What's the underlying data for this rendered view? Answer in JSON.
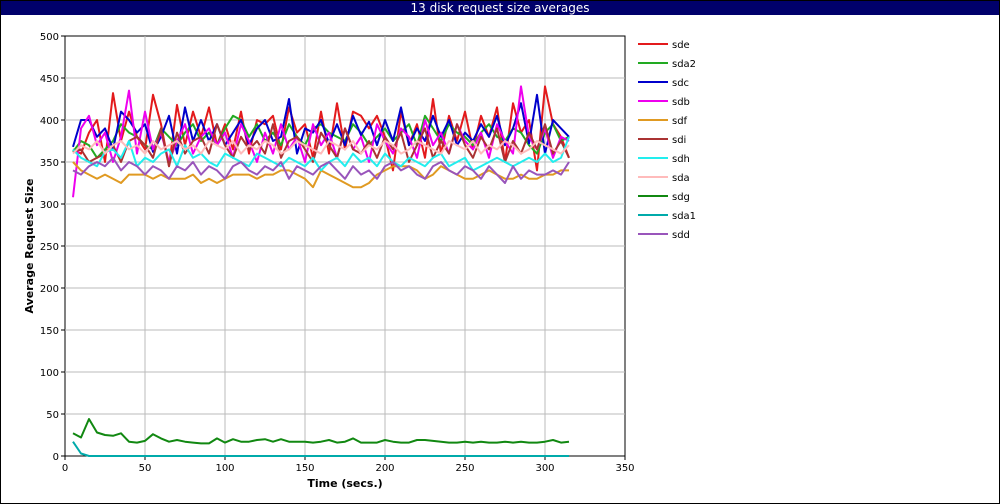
{
  "chart_data": {
    "type": "line",
    "title": "13 disk request size averages",
    "xlabel": "Time (secs.)",
    "ylabel": "Average Request Size",
    "xlim": [
      0,
      350
    ],
    "ylim": [
      0,
      500
    ],
    "xticks": [
      0,
      50,
      100,
      150,
      200,
      250,
      300,
      350
    ],
    "yticks": [
      0,
      50,
      100,
      150,
      200,
      250,
      300,
      350,
      400,
      450,
      500
    ],
    "grid": true,
    "legend_position": "right",
    "x": [
      5,
      10,
      15,
      20,
      25,
      30,
      35,
      40,
      45,
      50,
      55,
      60,
      65,
      70,
      75,
      80,
      85,
      90,
      95,
      100,
      105,
      110,
      115,
      120,
      125,
      130,
      135,
      140,
      145,
      150,
      155,
      160,
      165,
      170,
      175,
      180,
      185,
      190,
      195,
      200,
      205,
      210,
      215,
      220,
      225,
      230,
      235,
      240,
      245,
      250,
      255,
      260,
      265,
      270,
      275,
      280,
      285,
      290,
      295,
      300,
      305,
      310,
      315
    ],
    "series": [
      {
        "name": "sde",
        "color": "#e31a1c",
        "values": [
          365,
          360,
          385,
          400,
          350,
          432,
          375,
          410,
          380,
          365,
          430,
          395,
          345,
          418,
          370,
          410,
          380,
          415,
          370,
          395,
          365,
          410,
          360,
          400,
          395,
          405,
          365,
          415,
          385,
          395,
          355,
          410,
          360,
          420,
          365,
          410,
          405,
          390,
          405,
          380,
          340,
          410,
          370,
          395,
          355,
          425,
          360,
          405,
          375,
          410,
          365,
          405,
          380,
          415,
          350,
          420,
          385,
          400,
          340,
          440,
          395,
          380,
          355
        ]
      },
      {
        "name": "sda2",
        "color": "#22aa22",
        "values": [
          362,
          375,
          370,
          355,
          365,
          375,
          395,
          385,
          380,
          370,
          365,
          390,
          380,
          370,
          385,
          395,
          375,
          385,
          370,
          390,
          405,
          400,
          380,
          395,
          375,
          385,
          370,
          395,
          380,
          370,
          390,
          395,
          385,
          380,
          375,
          395,
          385,
          370,
          380,
          390,
          375,
          385,
          395,
          370,
          405,
          390,
          375,
          395,
          385,
          380,
          370,
          385,
          395,
          380,
          375,
          390,
          385,
          370,
          360,
          385,
          395,
          375,
          380
        ]
      },
      {
        "name": "sdc",
        "color": "#0000cc",
        "values": [
          368,
          400,
          400,
          380,
          390,
          365,
          410,
          400,
          385,
          395,
          362,
          380,
          405,
          360,
          415,
          375,
          400,
          375,
          395,
          370,
          385,
          400,
          370,
          390,
          400,
          375,
          380,
          425,
          360,
          390,
          385,
          400,
          372,
          395,
          370,
          405,
          382,
          398,
          370,
          400,
          375,
          415,
          370,
          390,
          375,
          405,
          380,
          400,
          370,
          385,
          375,
          395,
          380,
          405,
          370,
          390,
          420,
          372,
          430,
          360,
          400,
          390,
          380
        ]
      },
      {
        "name": "sdb",
        "color": "#ee00ee",
        "values": [
          308,
          390,
          405,
          370,
          385,
          350,
          380,
          435,
          360,
          410,
          365,
          385,
          350,
          375,
          395,
          360,
          380,
          390,
          370,
          385,
          355,
          395,
          375,
          350,
          385,
          360,
          395,
          365,
          380,
          350,
          395,
          370,
          385,
          355,
          390,
          365,
          380,
          350,
          395,
          375,
          360,
          390,
          380,
          355,
          400,
          370,
          385,
          360,
          395,
          375,
          365,
          385,
          355,
          395,
          375,
          360,
          440,
          380,
          365,
          390,
          355,
          380,
          375
        ]
      },
      {
        "name": "sdf",
        "color": "#e09a22",
        "values": [
          350,
          340,
          335,
          330,
          335,
          330,
          325,
          335,
          335,
          335,
          330,
          335,
          330,
          330,
          330,
          335,
          325,
          330,
          325,
          330,
          335,
          335,
          335,
          330,
          335,
          335,
          340,
          340,
          335,
          330,
          320,
          340,
          335,
          330,
          325,
          320,
          320,
          325,
          335,
          340,
          345,
          345,
          345,
          340,
          330,
          335,
          345,
          340,
          335,
          330,
          330,
          335,
          340,
          335,
          330,
          330,
          335,
          330,
          330,
          335,
          335,
          340,
          340
        ]
      },
      {
        "name": "sdi",
        "color": "#aa3333",
        "values": [
          362,
          365,
          350,
          355,
          360,
          370,
          350,
          375,
          380,
          370,
          355,
          390,
          345,
          385,
          360,
          375,
          380,
          360,
          395,
          370,
          355,
          380,
          365,
          375,
          360,
          395,
          355,
          375,
          380,
          365,
          350,
          385,
          370,
          355,
          390,
          365,
          360,
          375,
          355,
          380,
          365,
          385,
          350,
          370,
          390,
          355,
          375,
          360,
          395,
          370,
          355,
          380,
          365,
          390,
          350,
          375,
          360,
          385,
          365,
          395,
          360,
          375,
          355
        ]
      },
      {
        "name": "sdh",
        "color": "#22eeee",
        "values": [
          365,
          355,
          350,
          345,
          362,
          365,
          355,
          375,
          345,
          355,
          350,
          360,
          365,
          345,
          370,
          355,
          360,
          350,
          345,
          360,
          355,
          350,
          345,
          360,
          355,
          350,
          345,
          355,
          350,
          345,
          355,
          340,
          350,
          355,
          345,
          360,
          350,
          355,
          345,
          360,
          350,
          345,
          355,
          350,
          345,
          355,
          360,
          345,
          350,
          355,
          340,
          345,
          350,
          355,
          350,
          345,
          350,
          355,
          350,
          360,
          350,
          355,
          380
        ]
      },
      {
        "name": "sda",
        "color": "#ffbbbb",
        "values": [
          360,
          370,
          365,
          375,
          360,
          370,
          375,
          365,
          370,
          360,
          375,
          365,
          370,
          375,
          365,
          370,
          360,
          375,
          370,
          365,
          375,
          360,
          370,
          365,
          375,
          370,
          360,
          365,
          375,
          370,
          365,
          360,
          375,
          370,
          365,
          375,
          360,
          370,
          365,
          375,
          370,
          360,
          365,
          375,
          370,
          365,
          360,
          375,
          370,
          365,
          375,
          360,
          370,
          365,
          375,
          370,
          360,
          365,
          375,
          370,
          365,
          360,
          370
        ]
      },
      {
        "name": "sdg",
        "color": "#118811",
        "values": [
          27,
          22,
          44,
          28,
          25,
          24,
          27,
          17,
          16,
          18,
          26,
          21,
          17,
          19,
          17,
          16,
          15,
          15,
          21,
          16,
          20,
          17,
          17,
          19,
          20,
          17,
          20,
          17,
          17,
          17,
          16,
          17,
          19,
          16,
          17,
          21,
          16,
          16,
          16,
          19,
          17,
          16,
          16,
          19,
          19,
          18,
          17,
          16,
          16,
          17,
          16,
          17,
          16,
          16,
          17,
          16,
          17,
          16,
          16,
          17,
          19,
          16,
          17
        ]
      },
      {
        "name": "sda1",
        "color": "#00aaaa",
        "values": [
          17,
          3,
          0,
          0,
          0,
          0,
          0,
          0,
          0,
          0,
          0,
          0,
          0,
          0,
          0,
          0,
          0,
          0,
          0,
          0,
          0,
          0,
          0,
          0,
          0,
          0,
          0,
          0,
          0,
          0,
          0,
          0,
          0,
          0,
          0,
          0,
          0,
          0,
          0,
          0,
          0,
          0,
          0,
          0,
          0,
          0,
          0,
          0,
          0,
          0,
          0,
          0,
          0,
          0,
          0,
          0,
          0,
          0,
          0,
          0,
          0,
          0,
          0
        ]
      },
      {
        "name": "sdd",
        "color": "#9955bb",
        "values": [
          340,
          335,
          345,
          350,
          345,
          355,
          340,
          350,
          345,
          335,
          345,
          340,
          330,
          345,
          340,
          350,
          335,
          345,
          340,
          330,
          345,
          350,
          340,
          335,
          345,
          340,
          350,
          330,
          345,
          340,
          335,
          345,
          350,
          340,
          330,
          345,
          335,
          340,
          330,
          345,
          350,
          340,
          345,
          335,
          330,
          345,
          350,
          340,
          335,
          345,
          340,
          330,
          345,
          335,
          325,
          345,
          330,
          340,
          335,
          335,
          340,
          335,
          350
        ]
      }
    ]
  }
}
